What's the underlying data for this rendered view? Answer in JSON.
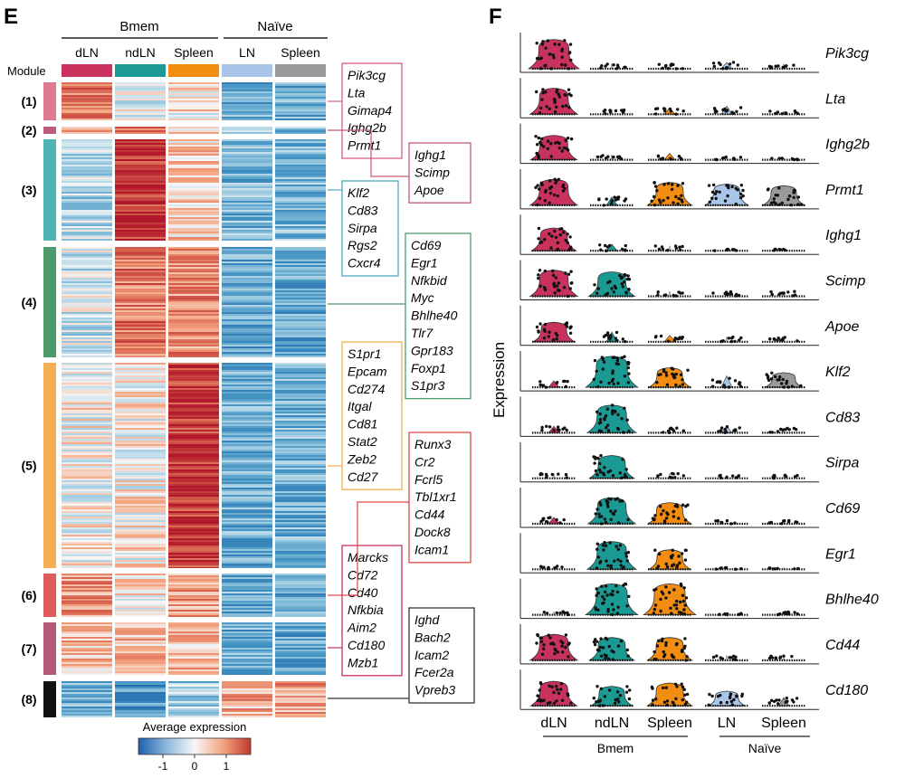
{
  "panel_e": {
    "letter": "E",
    "group_labels": [
      "Bmem",
      "Naïve"
    ],
    "module_header": "Module",
    "columns": [
      {
        "label": "dLN",
        "color": "#c8325d"
      },
      {
        "label": "ndLN",
        "color": "#1b9a93"
      },
      {
        "label": "Spleen",
        "color": "#f38d11"
      },
      {
        "label": "LN",
        "color": "#a9c5e8"
      },
      {
        "label": "Spleen",
        "color": "#9c9a99"
      }
    ],
    "modules": [
      {
        "label": "(1)",
        "color": "#e07a93",
        "genes": [
          "Pik3cg",
          "Lta",
          "Gimap4",
          "Ighg2b",
          "Prmt1"
        ],
        "box_color": "#d9607d",
        "levels": [
          0.55,
          -0.1,
          0.1,
          -0.55,
          -0.55
        ]
      },
      {
        "label": "(2)",
        "color": "#c05a7a",
        "genes": [
          "Ighg1",
          "Scimp",
          "Apoe"
        ],
        "box_color": "#c35a7a",
        "levels": [
          0.35,
          0.6,
          0.25,
          -0.45,
          -0.4
        ]
      },
      {
        "label": "(3)",
        "color": "#4fb5b2",
        "genes": [
          "Klf2",
          "Cd83",
          "Sirpa",
          "Rgs2",
          "Cxcr4"
        ],
        "box_color": "#4fa8c2",
        "levels": [
          -0.25,
          0.95,
          0.2,
          -0.5,
          -0.45
        ]
      },
      {
        "label": "(4)",
        "color": "#4c9a6a",
        "genes": [
          "Cd69",
          "Egr1",
          "Nfkbid",
          "Myc",
          "Bhlhe40",
          "Tlr7",
          "Gpr183",
          "Foxp1",
          "S1pr3"
        ],
        "box_color": "#4f9a6e",
        "levels": [
          -0.15,
          0.6,
          0.5,
          -0.6,
          -0.6
        ]
      },
      {
        "label": "(5)",
        "color": "#f5ae52",
        "genes": [
          "S1pr1",
          "Epcam",
          "Cd274",
          "Itgal",
          "Cd81",
          "Stat2",
          "Zeb2",
          "Cd27"
        ],
        "box_color": "#f0b04a",
        "levels": [
          0.05,
          0.05,
          0.95,
          -0.55,
          -0.5
        ]
      },
      {
        "label": "(6)",
        "color": "#e05b5b",
        "genes": [
          "Runx3",
          "Cr2",
          "Fcrl5",
          "Tbl1xr1",
          "Cd44",
          "Dock8",
          "Icam1"
        ],
        "box_color": "#e04848",
        "levels": [
          0.45,
          0.05,
          0.4,
          -0.55,
          -0.55
        ]
      },
      {
        "label": "(7)",
        "color": "#b25a78",
        "genes": [
          "Marcks",
          "Cd72",
          "Cd40",
          "Nfkbia",
          "Aim2",
          "Cd180",
          "Mzb1"
        ],
        "box_color": "#c8325d",
        "levels": [
          0.25,
          0.25,
          0.3,
          -0.55,
          -0.6
        ]
      },
      {
        "label": "(8)",
        "color": "#111111",
        "genes": [
          "Ighd",
          "Bach2",
          "Icam2",
          "Fcer2a",
          "Vpreb3"
        ],
        "box_color": "#333333",
        "levels": [
          -0.5,
          -0.7,
          -0.35,
          0.35,
          0.4
        ]
      }
    ],
    "colorbar": {
      "title": "Average expression",
      "ticks": [
        "-1",
        "0",
        "1"
      ]
    }
  },
  "chart_data": {
    "type": "violin",
    "panel_letter": "F",
    "ylabel": "Expression",
    "groups": [
      {
        "name": "Bmem",
        "categories": [
          "dLN",
          "ndLN",
          "Spleen"
        ]
      },
      {
        "name": "Naïve",
        "categories": [
          "LN",
          "Spleen"
        ]
      }
    ],
    "categories": [
      "dLN",
      "ndLN",
      "Spleen",
      "LN",
      "Spleen"
    ],
    "colors": [
      "#c8325d",
      "#1b9a93",
      "#f38d11",
      "#a9c5e8",
      "#9c9a99"
    ],
    "genes": [
      {
        "name": "Pik3cg",
        "levels": [
          0.9,
          0.15,
          0.15,
          0.2,
          0.15
        ]
      },
      {
        "name": "Lta",
        "levels": [
          0.8,
          0.15,
          0.2,
          0.25,
          0.1
        ]
      },
      {
        "name": "Ighg2b",
        "levels": [
          0.75,
          0.15,
          0.2,
          0.1,
          0.05
        ]
      },
      {
        "name": "Prmt1",
        "levels": [
          0.8,
          0.25,
          0.7,
          0.65,
          0.6
        ]
      },
      {
        "name": "Ighg1",
        "levels": [
          0.7,
          0.2,
          0.15,
          0.05,
          0.05
        ]
      },
      {
        "name": "Scimp",
        "levels": [
          0.8,
          0.75,
          0.15,
          0.15,
          0.15
        ]
      },
      {
        "name": "Apoe",
        "levels": [
          0.6,
          0.3,
          0.2,
          0.15,
          0.15
        ]
      },
      {
        "name": "Klf2",
        "levels": [
          0.2,
          0.95,
          0.6,
          0.35,
          0.45
        ]
      },
      {
        "name": "Cd83",
        "levels": [
          0.2,
          0.85,
          0.15,
          0.2,
          0.15
        ]
      },
      {
        "name": "Sirpa",
        "levels": [
          0.15,
          0.7,
          0.15,
          0.1,
          0.1
        ]
      },
      {
        "name": "Cd69",
        "levels": [
          0.2,
          0.8,
          0.65,
          0.1,
          0.1
        ]
      },
      {
        "name": "Egr1",
        "levels": [
          0.1,
          0.85,
          0.6,
          0.05,
          0.05
        ]
      },
      {
        "name": "Bhlhe40",
        "levels": [
          0.1,
          0.95,
          0.95,
          0.05,
          0.1
        ]
      },
      {
        "name": "Cd44",
        "levels": [
          0.8,
          0.7,
          0.7,
          0.15,
          0.15
        ]
      },
      {
        "name": "Cd180",
        "levels": [
          0.75,
          0.6,
          0.7,
          0.45,
          0.25
        ]
      }
    ]
  }
}
